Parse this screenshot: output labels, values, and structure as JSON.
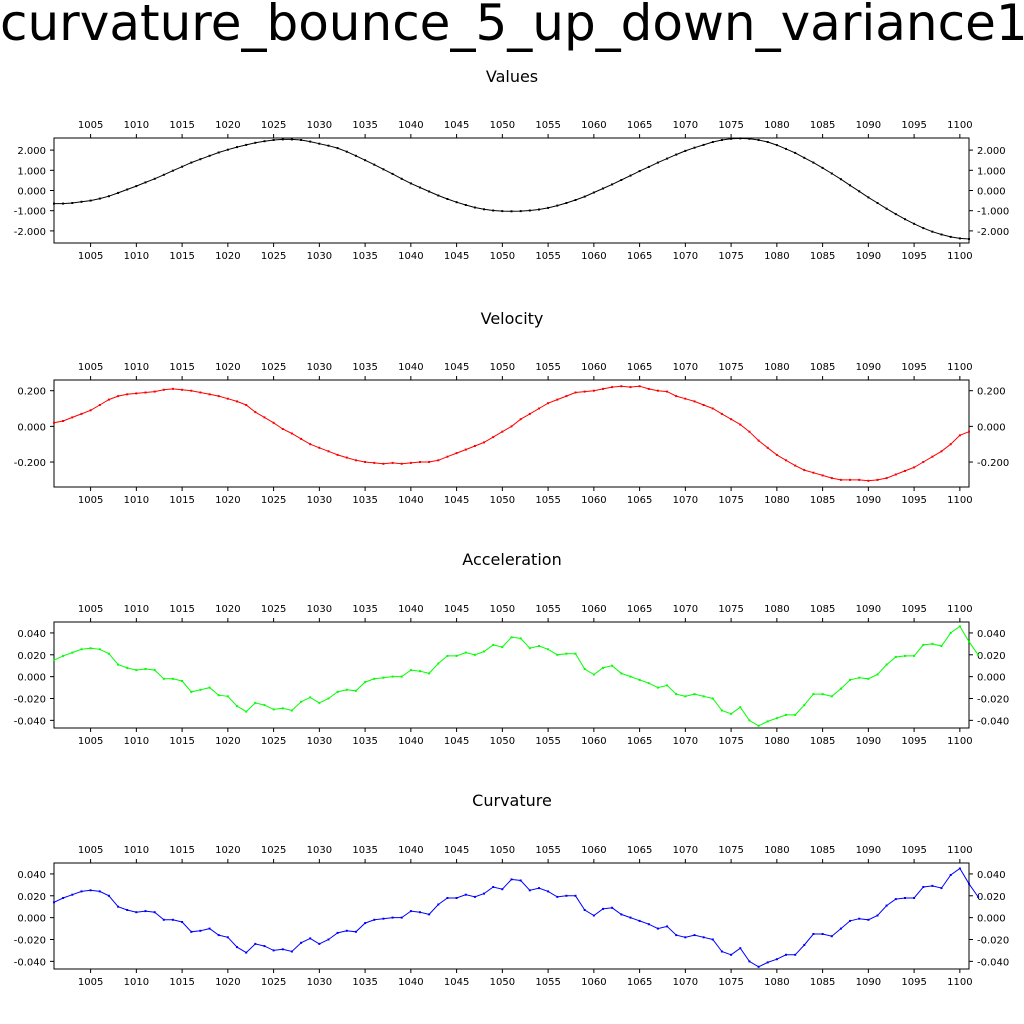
{
  "page_title": "curvature_bounce_5_up_down_variance1",
  "chart_data": [
    {
      "type": "line",
      "title": "Values",
      "color": "#000000",
      "xlim": [
        1001,
        1101
      ],
      "ylim": [
        -2.6,
        2.6
      ],
      "x_ticks": [
        1005,
        1010,
        1015,
        1020,
        1025,
        1030,
        1035,
        1040,
        1045,
        1050,
        1055,
        1060,
        1065,
        1070,
        1075,
        1080,
        1085,
        1090,
        1095,
        1100
      ],
      "y_ticks": [
        2.0,
        1.0,
        0.0,
        -1.0,
        -2.0
      ],
      "y_tick_labels": [
        "2.000",
        "1.000",
        "0.000",
        "-1.000",
        "-2.000"
      ],
      "x_start": 1001,
      "values": [
        -0.65,
        -0.65,
        -0.62,
        -0.56,
        -0.5,
        -0.4,
        -0.28,
        -0.12,
        0.05,
        0.22,
        0.4,
        0.58,
        0.78,
        0.98,
        1.18,
        1.38,
        1.55,
        1.72,
        1.88,
        2.02,
        2.15,
        2.26,
        2.36,
        2.44,
        2.5,
        2.53,
        2.53,
        2.5,
        2.42,
        2.32,
        2.22,
        2.1,
        1.92,
        1.72,
        1.5,
        1.28,
        1.05,
        0.82,
        0.58,
        0.35,
        0.15,
        -0.05,
        -0.25,
        -0.42,
        -0.58,
        -0.72,
        -0.84,
        -0.93,
        -0.99,
        -1.02,
        -1.03,
        -1.02,
        -0.99,
        -0.94,
        -0.86,
        -0.75,
        -0.62,
        -0.47,
        -0.3,
        -0.1,
        0.1,
        0.3,
        0.52,
        0.74,
        0.96,
        1.17,
        1.38,
        1.58,
        1.78,
        1.96,
        2.12,
        2.26,
        2.4,
        2.5,
        2.56,
        2.58,
        2.56,
        2.5,
        2.4,
        2.25,
        2.06,
        1.86,
        1.62,
        1.38,
        1.12,
        0.84,
        0.56,
        0.26,
        -0.04,
        -0.34,
        -0.62,
        -0.9,
        -1.17,
        -1.42,
        -1.65,
        -1.86,
        -2.04,
        -2.18,
        -2.3,
        -2.37,
        -2.4
      ]
    },
    {
      "type": "line",
      "title": "Velocity",
      "color": "#ff0000",
      "xlim": [
        1001,
        1101
      ],
      "ylim": [
        -0.34,
        0.26
      ],
      "x_ticks": [
        1005,
        1010,
        1015,
        1020,
        1025,
        1030,
        1035,
        1040,
        1045,
        1050,
        1055,
        1060,
        1065,
        1070,
        1075,
        1080,
        1085,
        1090,
        1095,
        1100
      ],
      "y_ticks": [
        0.2,
        0.0,
        -0.2
      ],
      "y_tick_labels": [
        "0.200",
        "0.000",
        "-0.200"
      ],
      "x_start": 1001,
      "values": [
        0.02,
        0.03,
        0.05,
        0.07,
        0.09,
        0.12,
        0.15,
        0.17,
        0.18,
        0.185,
        0.19,
        0.195,
        0.205,
        0.21,
        0.205,
        0.2,
        0.19,
        0.18,
        0.17,
        0.155,
        0.14,
        0.12,
        0.08,
        0.05,
        0.02,
        -0.015,
        -0.04,
        -0.07,
        -0.1,
        -0.12,
        -0.14,
        -0.16,
        -0.175,
        -0.19,
        -0.2,
        -0.205,
        -0.21,
        -0.205,
        -0.21,
        -0.205,
        -0.2,
        -0.2,
        -0.19,
        -0.17,
        -0.15,
        -0.13,
        -0.11,
        -0.09,
        -0.06,
        -0.03,
        0.0,
        0.04,
        0.07,
        0.1,
        0.13,
        0.15,
        0.17,
        0.19,
        0.195,
        0.2,
        0.21,
        0.22,
        0.225,
        0.22,
        0.225,
        0.21,
        0.2,
        0.195,
        0.17,
        0.155,
        0.14,
        0.12,
        0.1,
        0.07,
        0.04,
        0.01,
        -0.03,
        -0.08,
        -0.12,
        -0.16,
        -0.19,
        -0.22,
        -0.245,
        -0.26,
        -0.275,
        -0.29,
        -0.3,
        -0.3,
        -0.3,
        -0.305,
        -0.3,
        -0.29,
        -0.27,
        -0.25,
        -0.23,
        -0.2,
        -0.17,
        -0.14,
        -0.1,
        -0.05,
        -0.03
      ]
    },
    {
      "type": "line",
      "title": "Acceleration",
      "color": "#00ff00",
      "xlim": [
        1001,
        1101
      ],
      "ylim": [
        -0.047,
        0.05
      ],
      "x_ticks": [
        1005,
        1010,
        1015,
        1020,
        1025,
        1030,
        1035,
        1040,
        1045,
        1050,
        1055,
        1060,
        1065,
        1070,
        1075,
        1080,
        1085,
        1090,
        1095,
        1100
      ],
      "y_ticks": [
        0.04,
        0.02,
        0.0,
        -0.02,
        -0.04
      ],
      "y_tick_labels": [
        "0.040",
        "0.020",
        "0.000",
        "-0.020",
        "-0.040"
      ],
      "x_start": 1001,
      "values": [
        0.015,
        0.019,
        0.022,
        0.025,
        0.026,
        0.025,
        0.021,
        0.011,
        0.008,
        0.006,
        0.007,
        0.006,
        -0.002,
        -0.002,
        -0.004,
        -0.014,
        -0.012,
        -0.01,
        -0.017,
        -0.018,
        -0.027,
        -0.032,
        -0.024,
        -0.026,
        -0.03,
        -0.029,
        -0.031,
        -0.023,
        -0.019,
        -0.024,
        -0.02,
        -0.014,
        -0.012,
        -0.013,
        -0.005,
        -0.002,
        -0.001,
        0.0,
        0.0,
        0.006,
        0.005,
        0.003,
        0.012,
        0.019,
        0.019,
        0.022,
        0.02,
        0.023,
        0.029,
        0.027,
        0.036,
        0.035,
        0.026,
        0.028,
        0.025,
        0.02,
        0.021,
        0.021,
        0.007,
        0.002,
        0.008,
        0.01,
        0.003,
        0.0,
        -0.003,
        -0.006,
        -0.01,
        -0.008,
        -0.016,
        -0.018,
        -0.016,
        -0.018,
        -0.02,
        -0.031,
        -0.034,
        -0.028,
        -0.04,
        -0.045,
        -0.041,
        -0.038,
        -0.035,
        -0.035,
        -0.026,
        -0.016,
        -0.016,
        -0.018,
        -0.011,
        -0.003,
        -0.001,
        -0.002,
        0.002,
        0.011,
        0.018,
        0.019,
        0.019,
        0.029,
        0.03,
        0.028,
        0.04,
        0.046,
        0.032,
        0.02
      ]
    },
    {
      "type": "line",
      "title": "Curvature",
      "color": "#0000ff",
      "xlim": [
        1001,
        1101
      ],
      "ylim": [
        -0.047,
        0.05
      ],
      "x_ticks": [
        1005,
        1010,
        1015,
        1020,
        1025,
        1030,
        1035,
        1040,
        1045,
        1050,
        1055,
        1060,
        1065,
        1070,
        1075,
        1080,
        1085,
        1090,
        1095,
        1100
      ],
      "y_ticks": [
        0.04,
        0.02,
        0.0,
        -0.02,
        -0.04
      ],
      "y_tick_labels": [
        "0.040",
        "0.020",
        "0.000",
        "-0.020",
        "-0.040"
      ],
      "x_start": 1001,
      "values": [
        0.014,
        0.018,
        0.021,
        0.024,
        0.025,
        0.024,
        0.02,
        0.01,
        0.007,
        0.005,
        0.006,
        0.005,
        -0.002,
        -0.002,
        -0.004,
        -0.013,
        -0.012,
        -0.01,
        -0.016,
        -0.018,
        -0.027,
        -0.032,
        -0.024,
        -0.026,
        -0.03,
        -0.029,
        -0.031,
        -0.023,
        -0.019,
        -0.024,
        -0.02,
        -0.014,
        -0.012,
        -0.013,
        -0.005,
        -0.002,
        -0.001,
        0.0,
        0.0,
        0.006,
        0.005,
        0.003,
        0.012,
        0.018,
        0.018,
        0.021,
        0.019,
        0.022,
        0.028,
        0.026,
        0.035,
        0.034,
        0.025,
        0.027,
        0.024,
        0.019,
        0.02,
        0.02,
        0.007,
        0.002,
        0.008,
        0.009,
        0.003,
        0.0,
        -0.003,
        -0.006,
        -0.01,
        -0.008,
        -0.016,
        -0.018,
        -0.016,
        -0.018,
        -0.02,
        -0.031,
        -0.034,
        -0.028,
        -0.04,
        -0.045,
        -0.041,
        -0.038,
        -0.034,
        -0.034,
        -0.025,
        -0.015,
        -0.015,
        -0.017,
        -0.01,
        -0.003,
        -0.001,
        -0.002,
        0.002,
        0.011,
        0.017,
        0.018,
        0.018,
        0.028,
        0.029,
        0.027,
        0.039,
        0.045,
        0.031,
        0.019
      ]
    }
  ]
}
